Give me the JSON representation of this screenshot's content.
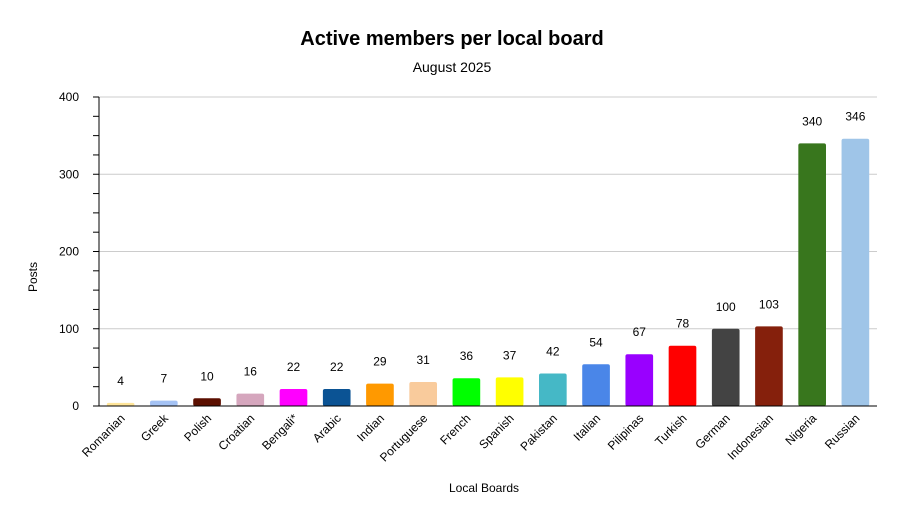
{
  "chart_data": {
    "type": "bar",
    "title": "Active members per local board",
    "subtitle": "August 2025",
    "xlabel": "Local Boards",
    "ylabel": "Posts",
    "ylim": [
      0,
      400
    ],
    "yticks": [
      0,
      100,
      200,
      300,
      400
    ],
    "grid": true,
    "legend": "none",
    "categories": [
      "Romanian",
      "Greek",
      "Polish",
      "Croatian",
      "Bengali*",
      "Arabic",
      "Indian",
      "Portuguese",
      "French",
      "Spanish",
      "Pakistan",
      "Italian",
      "Pilipinas",
      "Turkish",
      "German",
      "Indonesian",
      "Nigeria",
      "Russian"
    ],
    "values": [
      4,
      7,
      10,
      16,
      22,
      22,
      29,
      31,
      36,
      37,
      42,
      54,
      67,
      78,
      100,
      103,
      340,
      346
    ],
    "colors": [
      "#ffe599",
      "#a4c2f4",
      "#5b0f00",
      "#d5a6bd",
      "#ff00ff",
      "#0b5394",
      "#ff9900",
      "#f9cb9c",
      "#00ff00",
      "#ffff00",
      "#45b8c6",
      "#4a86e8",
      "#9900ff",
      "#ff0000",
      "#434343",
      "#85200c",
      "#38761d",
      "#9fc5e8"
    ]
  }
}
